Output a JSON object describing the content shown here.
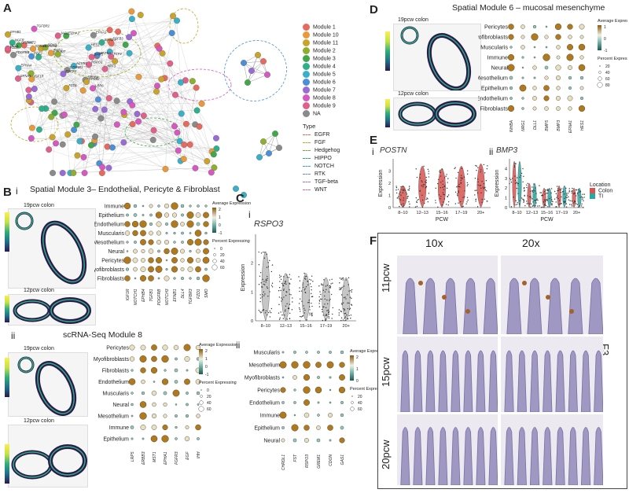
{
  "panels": {
    "A": {
      "label": "A"
    },
    "B": {
      "label": "B",
      "i": "i",
      "ii": "ii",
      "title_i": "Spatial Module 3– Endothelial, Pericyte & Fibroblast",
      "title_ii": "scRNA-Seq Module 8",
      "tissue_top": "19pcw colon",
      "tissue_bottom": "12pcw colon",
      "tissue_top_ii": "19pcw colon",
      "tissue_bottom_ii": "12pcw colon",
      "score_label_i": "Module 3 Score",
      "score_label_ii": "Module 8 Score"
    },
    "C": {
      "label": "C",
      "i": "i",
      "ii": "ii",
      "gene": "RSPO3",
      "ylabel": "Expression"
    },
    "D": {
      "label": "D",
      "title": "Spatial Module 6 – mucosal mesenchyme",
      "tissue_top": "19pcw colon",
      "tissue_bottom": "12pcw colon",
      "score_label": "Module 6 Score"
    },
    "E": {
      "label": "E",
      "i": "i",
      "ii": "ii",
      "gene_i": "POSTN",
      "gene_ii": "BMP3",
      "ylabel": "Expression",
      "xlabel": "PCW",
      "location_title": "Location",
      "loc1": "Colon",
      "loc2": "TI"
    },
    "F": {
      "label": "F",
      "col1": "10x",
      "col2": "20x",
      "row1": "11pcw",
      "row2": "15pcw",
      "row3": "20pcw",
      "side": "F3"
    }
  },
  "legend_A": {
    "modules": [
      {
        "name": "Module 1",
        "color": "#e8695e"
      },
      {
        "name": "Module 10",
        "color": "#e89a3a"
      },
      {
        "name": "Module 11",
        "color": "#c9a32a"
      },
      {
        "name": "Module 2",
        "color": "#8fae2e"
      },
      {
        "name": "Module 3",
        "color": "#3fa84a"
      },
      {
        "name": "Module 4",
        "color": "#2eb08a"
      },
      {
        "name": "Module 5",
        "color": "#3ab0c8"
      },
      {
        "name": "Module 6",
        "color": "#4a8fd8"
      },
      {
        "name": "Module 7",
        "color": "#9a6ad6"
      },
      {
        "name": "Module 8",
        "color": "#d658c0"
      },
      {
        "name": "Module 9",
        "color": "#e0608a"
      },
      {
        "name": "NA",
        "color": "#8a8a8a"
      }
    ],
    "type_title": "Type",
    "types": [
      {
        "name": "EGFR",
        "color": "#e06a5a"
      },
      {
        "name": "FGF",
        "color": "#c8a23a"
      },
      {
        "name": "Hedgehog",
        "color": "#7aa83a"
      },
      {
        "name": "HIPPO",
        "color": "#3aa86a"
      },
      {
        "name": "NOTCH",
        "color": "#3aaab8"
      },
      {
        "name": "RTK",
        "color": "#6a8ad8"
      },
      {
        "name": "TGF-beta",
        "color": "#b06ad0"
      },
      {
        "name": "WNT",
        "color": "#d86aa0"
      }
    ]
  },
  "dot_B_i": {
    "rows": [
      "Immune",
      "Epithelium",
      "Endothelium",
      "Muscularis",
      "Mesothelium",
      "Neural",
      "Pericytes",
      "Myofibroblasts",
      "Fibroblasts"
    ],
    "cols": [
      "IGF1R",
      "NOTCH1",
      "EPHB4",
      "TGFB1",
      "PDGFRB",
      "NOTCH3",
      "EFNB1",
      "DLL4",
      "TGFBR3",
      "FZD1",
      "SMO"
    ],
    "legend_avg": "Average Expression",
    "avg_ticks": [
      "2",
      "1",
      "0",
      "-1"
    ],
    "legend_pct": "Percent Expressing",
    "pct_ticks": [
      "0",
      "20",
      "40",
      "60"
    ]
  },
  "dot_B_ii": {
    "rows": [
      "Pericytes",
      "Myofibroblasts",
      "Fibroblasts",
      "Endothelium",
      "Muscularis",
      "Neural",
      "Mesothelium",
      "Immune",
      "Epithelium"
    ],
    "cols": [
      "LRP5",
      "ERBB3",
      "MST1",
      "EPHA1",
      "FGFR3",
      "EGF",
      "IHH"
    ],
    "legend_avg": "Average Expression",
    "avg_ticks": [
      "2",
      "1",
      "0",
      "-1"
    ],
    "legend_pct": "Percent Expressing",
    "pct_ticks": [
      "0",
      "20",
      "40",
      "60"
    ]
  },
  "dot_C_ii": {
    "rows": [
      "Muscularis",
      "Mesothelium",
      "Myofibroblasts",
      "Pericytes",
      "Endothelium",
      "Immune",
      "Epithelium",
      "Neural"
    ],
    "cols": [
      "CHRDL1",
      "FST",
      "RSPO3",
      "GREM1",
      "CDON",
      "GAS1"
    ],
    "legend_avg": "Average Expression",
    "avg_ticks": [
      "2",
      "1",
      "0"
    ],
    "legend_pct": "Percent Expressing",
    "pct_ticks": [
      "20",
      "40",
      "60"
    ]
  },
  "dot_D": {
    "rows": [
      "Pericytes",
      "Myofibroblasts",
      "Muscularis",
      "Immune",
      "Neural",
      "Mesothelium",
      "Epithelium",
      "Endothelium",
      "Fibroblasts"
    ],
    "cols": [
      "INHBA",
      "NRG1",
      "DLL1",
      "BMP5",
      "BMP3",
      "EFNA1",
      "HES1"
    ],
    "legend_avg": "Average Expression",
    "avg_ticks": [
      "1",
      "0",
      "-1"
    ],
    "legend_pct": "Percent Expressing",
    "pct_ticks": [
      "20",
      "40",
      "60",
      "80"
    ]
  },
  "chart_data": [
    {
      "type": "violin",
      "title": "RSPO3",
      "ylabel": "Expression",
      "categories": [
        "8–10",
        "12–13",
        "15–16",
        "17–19",
        "20+"
      ],
      "yticks": [
        "0",
        "1",
        "2"
      ]
    },
    {
      "type": "violin",
      "title": "POSTN",
      "ylabel": "Expression",
      "xlabel": "PCW",
      "categories": [
        "8–10",
        "12–13",
        "15–16",
        "17–19",
        "20+"
      ],
      "yticks": [
        "0",
        "1",
        "2",
        "3"
      ]
    },
    {
      "type": "violin",
      "title": "BMP3",
      "ylabel": "Expression",
      "xlabel": "PCW",
      "categories": [
        "8–10",
        "12–13",
        "15–16",
        "17–19",
        "20+"
      ],
      "yticks": [
        "0",
        "1",
        "2",
        "3",
        "4"
      ]
    }
  ],
  "network_genes": [
    "RSPO3",
    "NOTCH1",
    "SMAD3",
    "FZD7",
    "FZD1",
    "WNT2",
    "WNT5A",
    "DLL4",
    "EPHB4",
    "EPHA4",
    "EFNA1",
    "EFNA5",
    "EFNB2",
    "EPHB1",
    "EPHA2",
    "TGFBR2",
    "TGFB3",
    "NTRK3",
    "NTF3",
    "NGFR",
    "BMP5",
    "IGF1R",
    "LRP6",
    "SOX9",
    "KIT",
    "PDGFRB",
    "CTNNB1",
    "JAG1",
    "HES1",
    "FGF2",
    "FGFR2",
    "BMP2",
    "TCF4",
    "GREM1",
    "ACVR1"
  ]
}
